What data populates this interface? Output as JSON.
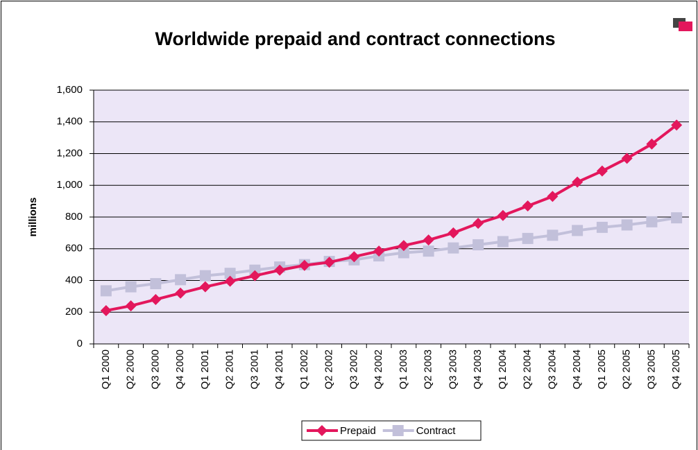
{
  "chart_data": {
    "type": "line",
    "title": "Worldwide prepaid and contract connections",
    "y_label": "millions",
    "categories": [
      "Q1 2000",
      "Q2 2000",
      "Q3 2000",
      "Q4 2000",
      "Q1 2001",
      "Q2 2001",
      "Q3 2001",
      "Q4 2001",
      "Q1 2002",
      "Q2 2002",
      "Q3 2002",
      "Q4 2002",
      "Q1 2003",
      "Q2 2003",
      "Q3 2003",
      "Q4 2003",
      "Q1 2004",
      "Q2 2004",
      "Q3 2004",
      "Q4 2004",
      "Q1 2005",
      "Q2 2005",
      "Q3 2005",
      "Q4 2005"
    ],
    "series": [
      {
        "name": "Prepaid",
        "color": "#e3175c",
        "marker": "diamond",
        "values": [
          210,
          240,
          280,
          320,
          360,
          395,
          430,
          465,
          495,
          515,
          550,
          585,
          620,
          655,
          700,
          760,
          810,
          870,
          930,
          1020,
          1090,
          1170,
          1260,
          1380
        ]
      },
      {
        "name": "Contract",
        "color": "#c2c0da",
        "marker": "square",
        "values": [
          335,
          360,
          380,
          405,
          430,
          445,
          465,
          485,
          500,
          520,
          530,
          555,
          575,
          585,
          605,
          625,
          645,
          665,
          685,
          715,
          735,
          750,
          770,
          795
        ]
      }
    ],
    "ylim": [
      0,
      1600
    ],
    "yticks": [
      0,
      200,
      400,
      600,
      800,
      {
        "value": 1000,
        "label": "1,000"
      },
      {
        "value": 1200,
        "label": "1,200"
      },
      {
        "value": 1400,
        "label": "1,400"
      },
      {
        "value": 1600,
        "label": "1,600"
      }
    ],
    "grid": true,
    "legend": "bottom"
  }
}
